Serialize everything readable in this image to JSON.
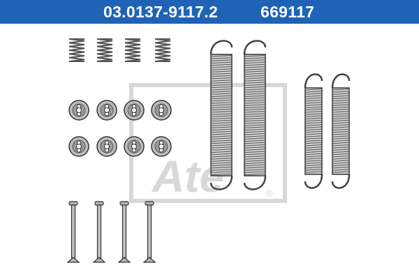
{
  "header": {
    "part_number": "03.0137-9117.2",
    "ref_number": "669117",
    "background_color": "#1e63b5",
    "text_color": "#ffffff"
  },
  "watermark": {
    "brand_text": "Ate",
    "registered_mark": "®",
    "color": "#d8d8d8"
  },
  "parts": {
    "small_springs": 4,
    "retainer_cups": 8,
    "long_springs": 2,
    "short_springs": 2,
    "hold_down_pins": 4,
    "part_color": "#a8a8a8",
    "outline_color": "#333333"
  }
}
